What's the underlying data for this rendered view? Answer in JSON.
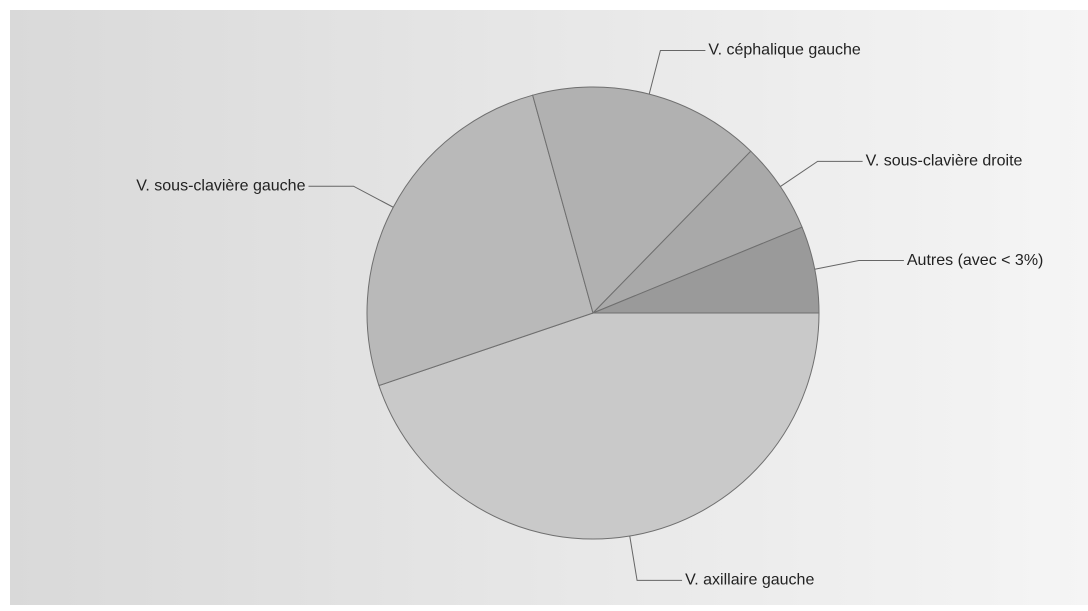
{
  "chart_data": {
    "type": "pie",
    "categories": [
      "V. axillaire gauche",
      "V. sous-clavière gauche",
      "V. céphalique gauche",
      "V. sous-clavière droite",
      "Autres (avec < 3%)"
    ],
    "values": [
      44.8,
      25.9,
      16.6,
      6.5,
      6.2
    ],
    "colors": [
      "#c9c9c9",
      "#b9b9b9",
      "#b1b1b1",
      "#a9a9a9",
      "#9a9a9a"
    ]
  }
}
